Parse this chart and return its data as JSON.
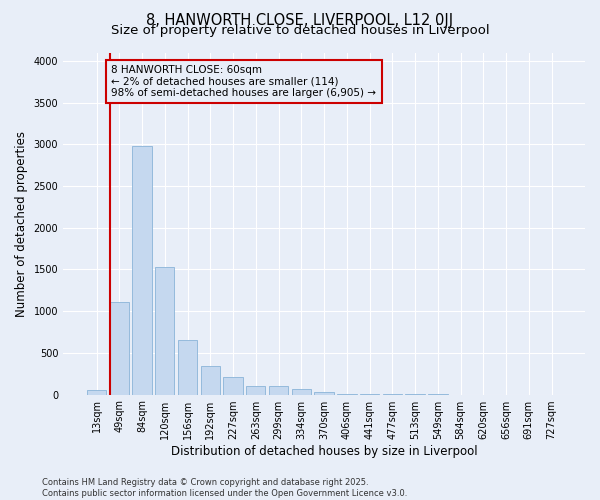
{
  "title1": "8, HANWORTH CLOSE, LIVERPOOL, L12 0JJ",
  "title2": "Size of property relative to detached houses in Liverpool",
  "xlabel": "Distribution of detached houses by size in Liverpool",
  "ylabel": "Number of detached properties",
  "categories": [
    "13sqm",
    "49sqm",
    "84sqm",
    "120sqm",
    "156sqm",
    "192sqm",
    "227sqm",
    "263sqm",
    "299sqm",
    "334sqm",
    "370sqm",
    "406sqm",
    "441sqm",
    "477sqm",
    "513sqm",
    "549sqm",
    "584sqm",
    "620sqm",
    "656sqm",
    "691sqm",
    "727sqm"
  ],
  "values": [
    55,
    1110,
    2980,
    1530,
    650,
    340,
    205,
    100,
    100,
    65,
    30,
    10,
    5,
    2,
    1,
    1,
    0,
    0,
    0,
    0,
    0
  ],
  "bar_color": "#c5d8ef",
  "bar_edge_color": "#8ab4d8",
  "vline_color": "#cc0000",
  "annotation_text": "8 HANWORTH CLOSE: 60sqm\n← 2% of detached houses are smaller (114)\n98% of semi-detached houses are larger (6,905) →",
  "annotation_box_color": "#cc0000",
  "ylim": [
    0,
    4100
  ],
  "background_color": "#e8eef8",
  "grid_color": "#ffffff",
  "footer_text": "Contains HM Land Registry data © Crown copyright and database right 2025.\nContains public sector information licensed under the Open Government Licence v3.0.",
  "title_fontsize": 10.5,
  "subtitle_fontsize": 9.5,
  "tick_fontsize": 7,
  "ylabel_fontsize": 8.5,
  "xlabel_fontsize": 8.5,
  "footer_fontsize": 6,
  "annot_fontsize": 7.5
}
